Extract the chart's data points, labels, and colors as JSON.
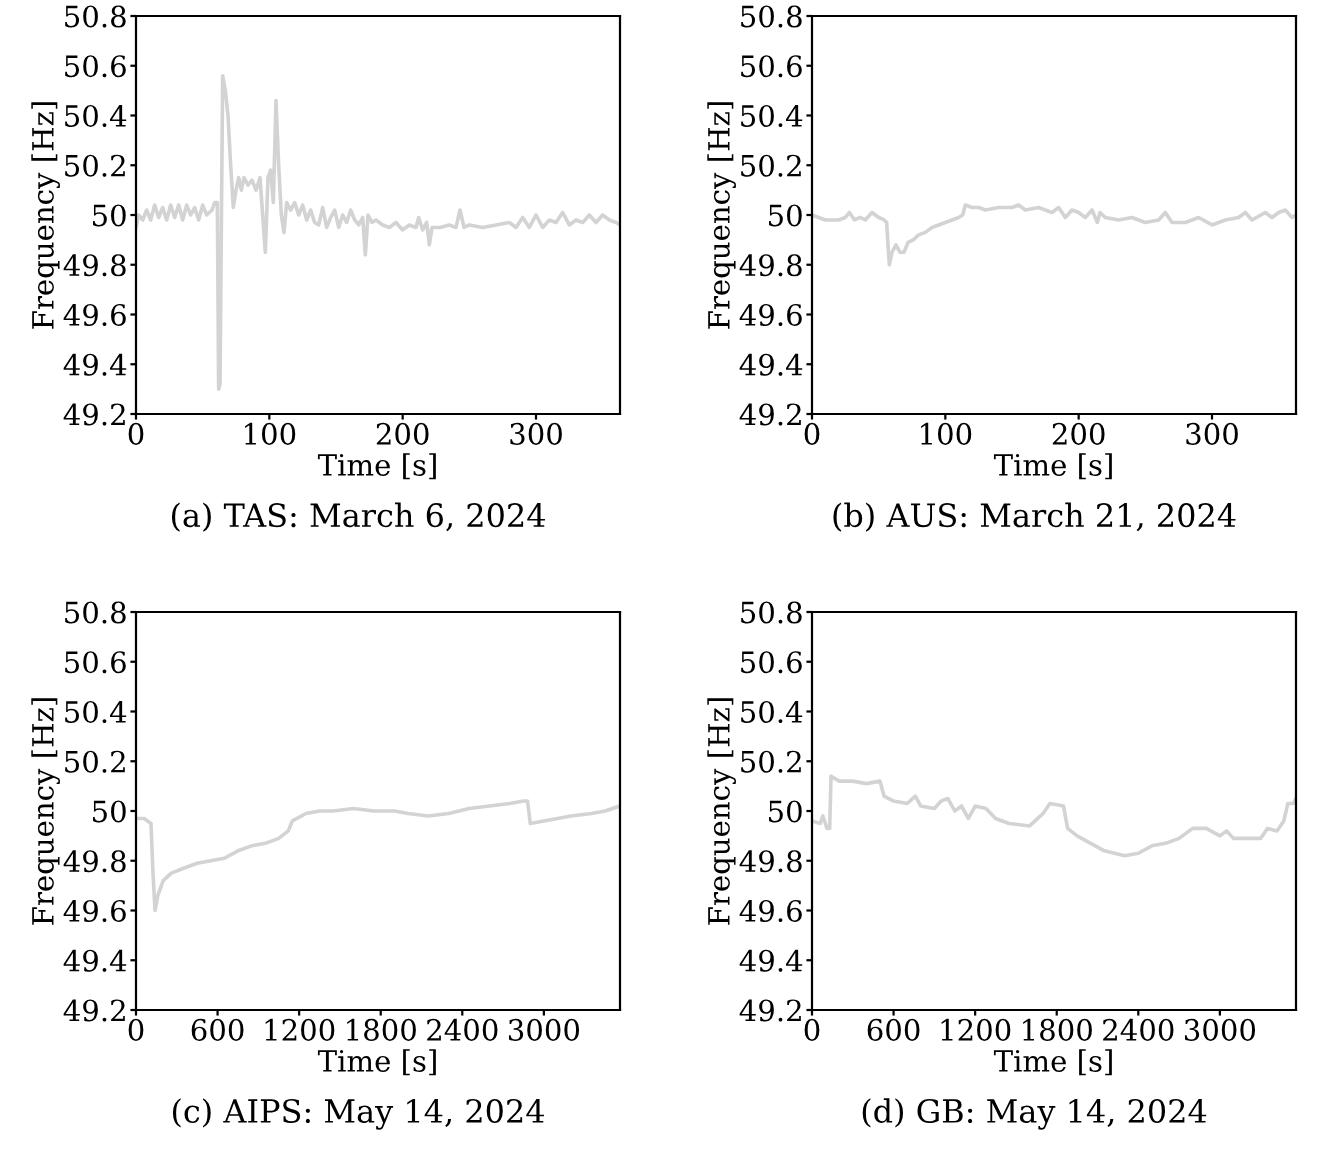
{
  "chart_data": [
    {
      "type": "line",
      "xlabel": "Time [s]",
      "ylabel": "Frequency [Hz]",
      "annotations": [
        "(a) TAS: March 6, 2024"
      ],
      "xlim": [
        0,
        363
      ],
      "xticks": [
        0,
        100,
        200,
        300
      ],
      "ylim": [
        49.2,
        50.8
      ],
      "yticks": [
        49.2,
        49.4,
        49.6,
        49.8,
        50,
        50.2,
        50.4,
        50.6,
        50.8
      ],
      "series": [
        {
          "color": "#d3d3d3",
          "x": [
            0,
            2,
            5,
            8,
            11,
            14,
            17,
            20,
            23,
            26,
            29,
            32,
            35,
            38,
            41,
            44,
            47,
            50,
            53,
            57,
            59,
            61,
            62,
            63,
            65,
            67,
            69,
            71,
            73,
            75,
            77,
            79,
            81,
            84,
            87,
            90,
            93,
            95,
            97,
            99,
            101,
            103,
            105,
            107,
            109,
            111,
            113,
            116,
            119,
            122,
            125,
            128,
            131,
            134,
            137,
            140,
            143,
            146,
            149,
            152,
            155,
            158,
            161,
            164,
            167,
            170,
            172,
            174,
            177,
            180,
            185,
            190,
            195,
            200,
            205,
            210,
            212,
            215,
            218,
            220,
            222,
            228,
            235,
            240,
            243,
            246,
            250,
            260,
            270,
            280,
            285,
            290,
            295,
            300,
            305,
            310,
            315,
            320,
            325,
            330,
            335,
            340,
            345,
            350,
            355,
            360,
            363
          ],
          "values": [
            49.95,
            50.0,
            49.98,
            50.02,
            49.98,
            50.04,
            49.99,
            50.03,
            49.98,
            50.04,
            49.99,
            50.04,
            49.98,
            50.04,
            50.0,
            50.03,
            49.98,
            50.04,
            50.0,
            50.02,
            50.05,
            50.05,
            49.3,
            49.32,
            50.56,
            50.5,
            50.4,
            50.2,
            50.03,
            50.1,
            50.15,
            50.1,
            50.15,
            50.12,
            50.14,
            50.1,
            50.15,
            50.0,
            49.85,
            50.15,
            50.18,
            50.05,
            50.46,
            50.2,
            50.0,
            49.93,
            50.05,
            50.02,
            50.05,
            50.0,
            50.04,
            49.98,
            50.02,
            49.97,
            49.96,
            50.03,
            49.95,
            49.99,
            50.02,
            49.95,
            50.0,
            49.97,
            50.02,
            49.98,
            49.96,
            49.99,
            49.84,
            50.0,
            49.97,
            49.98,
            49.96,
            49.95,
            49.97,
            49.94,
            49.96,
            49.95,
            49.99,
            49.94,
            49.97,
            49.88,
            49.95,
            49.95,
            49.96,
            49.95,
            50.02,
            49.95,
            49.96,
            49.95,
            49.96,
            49.97,
            49.95,
            49.99,
            49.95,
            50.0,
            49.95,
            49.98,
            49.97,
            50.01,
            49.96,
            49.98,
            49.97,
            50.0,
            49.97,
            50.0,
            49.98,
            49.97,
            49.96
          ]
        }
      ]
    },
    {
      "type": "line",
      "xlabel": "Time [s]",
      "ylabel": "Frequency [Hz]",
      "annotations": [
        "(b) AUS: March 21, 2024"
      ],
      "xlim": [
        0,
        363
      ],
      "xticks": [
        0,
        100,
        200,
        300
      ],
      "ylim": [
        49.2,
        50.8
      ],
      "yticks": [
        49.2,
        49.4,
        49.6,
        49.8,
        50,
        50.2,
        50.4,
        50.6,
        50.8
      ],
      "series": [
        {
          "color": "#d3d3d3",
          "x": [
            0,
            10,
            20,
            25,
            28,
            32,
            36,
            40,
            45,
            50,
            54,
            56,
            57,
            58,
            60,
            63,
            66,
            69,
            72,
            76,
            80,
            85,
            90,
            95,
            100,
            105,
            110,
            113,
            115,
            120,
            125,
            130,
            140,
            150,
            155,
            160,
            170,
            180,
            185,
            190,
            195,
            200,
            205,
            210,
            214,
            216,
            220,
            230,
            240,
            250,
            260,
            265,
            270,
            280,
            290,
            300,
            310,
            320,
            325,
            330,
            340,
            345,
            350,
            355,
            360,
            363
          ],
          "values": [
            50.0,
            49.98,
            49.98,
            49.99,
            50.01,
            49.98,
            49.99,
            49.98,
            50.01,
            49.99,
            49.98,
            49.97,
            49.88,
            49.8,
            49.85,
            49.88,
            49.85,
            49.85,
            49.89,
            49.9,
            49.92,
            49.93,
            49.95,
            49.96,
            49.97,
            49.98,
            49.99,
            50.0,
            50.04,
            50.03,
            50.03,
            50.02,
            50.03,
            50.03,
            50.04,
            50.02,
            50.03,
            50.01,
            50.03,
            49.99,
            50.02,
            50.01,
            49.99,
            50.02,
            49.97,
            50.01,
            49.99,
            49.98,
            49.99,
            49.97,
            49.98,
            50.01,
            49.97,
            49.97,
            49.99,
            49.96,
            49.98,
            49.99,
            50.01,
            49.98,
            50.01,
            49.99,
            50.01,
            50.02,
            49.99,
            50.0
          ]
        }
      ]
    },
    {
      "type": "line",
      "xlabel": "Time [s]",
      "ylabel": "Frequency [Hz]",
      "annotations": [
        "(c) AIPS: May 14, 2024"
      ],
      "xlim": [
        0,
        3560
      ],
      "xticks": [
        0,
        600,
        1200,
        1800,
        2400,
        3000
      ],
      "ylim": [
        49.2,
        50.8
      ],
      "yticks": [
        49.2,
        49.4,
        49.6,
        49.8,
        50,
        50.2,
        50.4,
        50.6,
        50.8
      ],
      "series": [
        {
          "color": "#d3d3d3",
          "x": [
            0,
            60,
            110,
            125,
            140,
            160,
            200,
            260,
            350,
            450,
            550,
            650,
            750,
            850,
            950,
            1050,
            1120,
            1150,
            1250,
            1350,
            1450,
            1600,
            1750,
            1900,
            2000,
            2150,
            2300,
            2450,
            2600,
            2750,
            2850,
            2880,
            2900,
            3000,
            3100,
            3200,
            3350,
            3450,
            3560
          ],
          "values": [
            49.97,
            49.97,
            49.95,
            49.75,
            49.6,
            49.66,
            49.72,
            49.75,
            49.77,
            49.79,
            49.8,
            49.81,
            49.84,
            49.86,
            49.87,
            49.89,
            49.92,
            49.96,
            49.99,
            50.0,
            50.0,
            50.01,
            50.0,
            50.0,
            49.99,
            49.98,
            49.99,
            50.01,
            50.02,
            50.03,
            50.04,
            50.04,
            49.95,
            49.96,
            49.97,
            49.98,
            49.99,
            50.0,
            50.02
          ]
        }
      ]
    },
    {
      "type": "line",
      "xlabel": "Time [s]",
      "ylabel": "Frequency [Hz]",
      "annotations": [
        "(d) GB: May 14, 2024"
      ],
      "xlim": [
        0,
        3560
      ],
      "xticks": [
        0,
        600,
        1200,
        1800,
        2400,
        3000
      ],
      "ylim": [
        49.2,
        50.8
      ],
      "yticks": [
        49.2,
        49.4,
        49.6,
        49.8,
        50,
        50.2,
        50.4,
        50.6,
        50.8
      ],
      "series": [
        {
          "color": "#d3d3d3",
          "x": [
            0,
            60,
            80,
            110,
            130,
            140,
            200,
            300,
            400,
            500,
            530,
            600,
            700,
            760,
            800,
            900,
            950,
            1000,
            1050,
            1100,
            1150,
            1200,
            1280,
            1350,
            1450,
            1600,
            1700,
            1750,
            1850,
            1880,
            1950,
            2050,
            2150,
            2300,
            2400,
            2500,
            2600,
            2700,
            2800,
            2900,
            3000,
            3050,
            3100,
            3200,
            3300,
            3350,
            3420,
            3470,
            3500,
            3540,
            3560
          ],
          "values": [
            49.96,
            49.95,
            49.98,
            49.93,
            49.93,
            50.14,
            50.12,
            50.12,
            50.11,
            50.12,
            50.06,
            50.04,
            50.03,
            50.06,
            50.02,
            50.01,
            50.04,
            50.05,
            50.0,
            50.02,
            49.97,
            50.02,
            50.01,
            49.97,
            49.95,
            49.94,
            49.99,
            50.03,
            50.02,
            49.93,
            49.9,
            49.87,
            49.84,
            49.82,
            49.83,
            49.86,
            49.87,
            49.89,
            49.93,
            49.93,
            49.9,
            49.92,
            49.89,
            49.89,
            49.89,
            49.93,
            49.92,
            49.96,
            50.03,
            50.03,
            50.05
          ]
        }
      ]
    }
  ]
}
